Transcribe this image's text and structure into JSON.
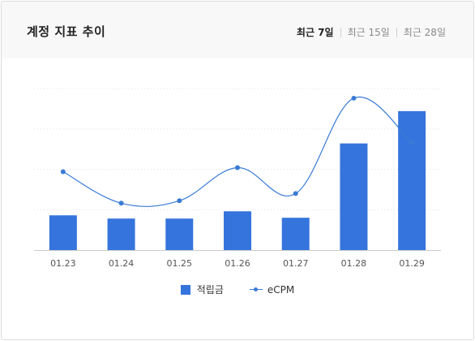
{
  "header": {
    "title": "계정 지표 추이",
    "tabs": [
      {
        "label": "최근 7일",
        "active": true
      },
      {
        "label": "최근 15일",
        "active": false
      },
      {
        "label": "최근 28일",
        "active": false
      }
    ]
  },
  "legend": {
    "bar_label": "적립금",
    "line_label": "eCPM"
  },
  "colors": {
    "bar": "#3574dc",
    "line": "#3a7bd5",
    "grid": "#e3e3e3",
    "axis": "#cccccc",
    "tick_text": "#555555"
  },
  "chart_data": {
    "type": "bar",
    "categories": [
      "01.23",
      "01.24",
      "01.25",
      "01.26",
      "01.27",
      "01.28",
      "01.29"
    ],
    "series": [
      {
        "name": "적립금",
        "type": "bar",
        "values": [
          43,
          39,
          39,
          48,
          40,
          132,
          172
        ]
      },
      {
        "name": "eCPM",
        "type": "line",
        "values": [
          97,
          58,
          61,
          102,
          70,
          188,
          133
        ]
      }
    ],
    "ylim": [
      0,
      200
    ],
    "grid": true,
    "legend_position": "bottom"
  }
}
